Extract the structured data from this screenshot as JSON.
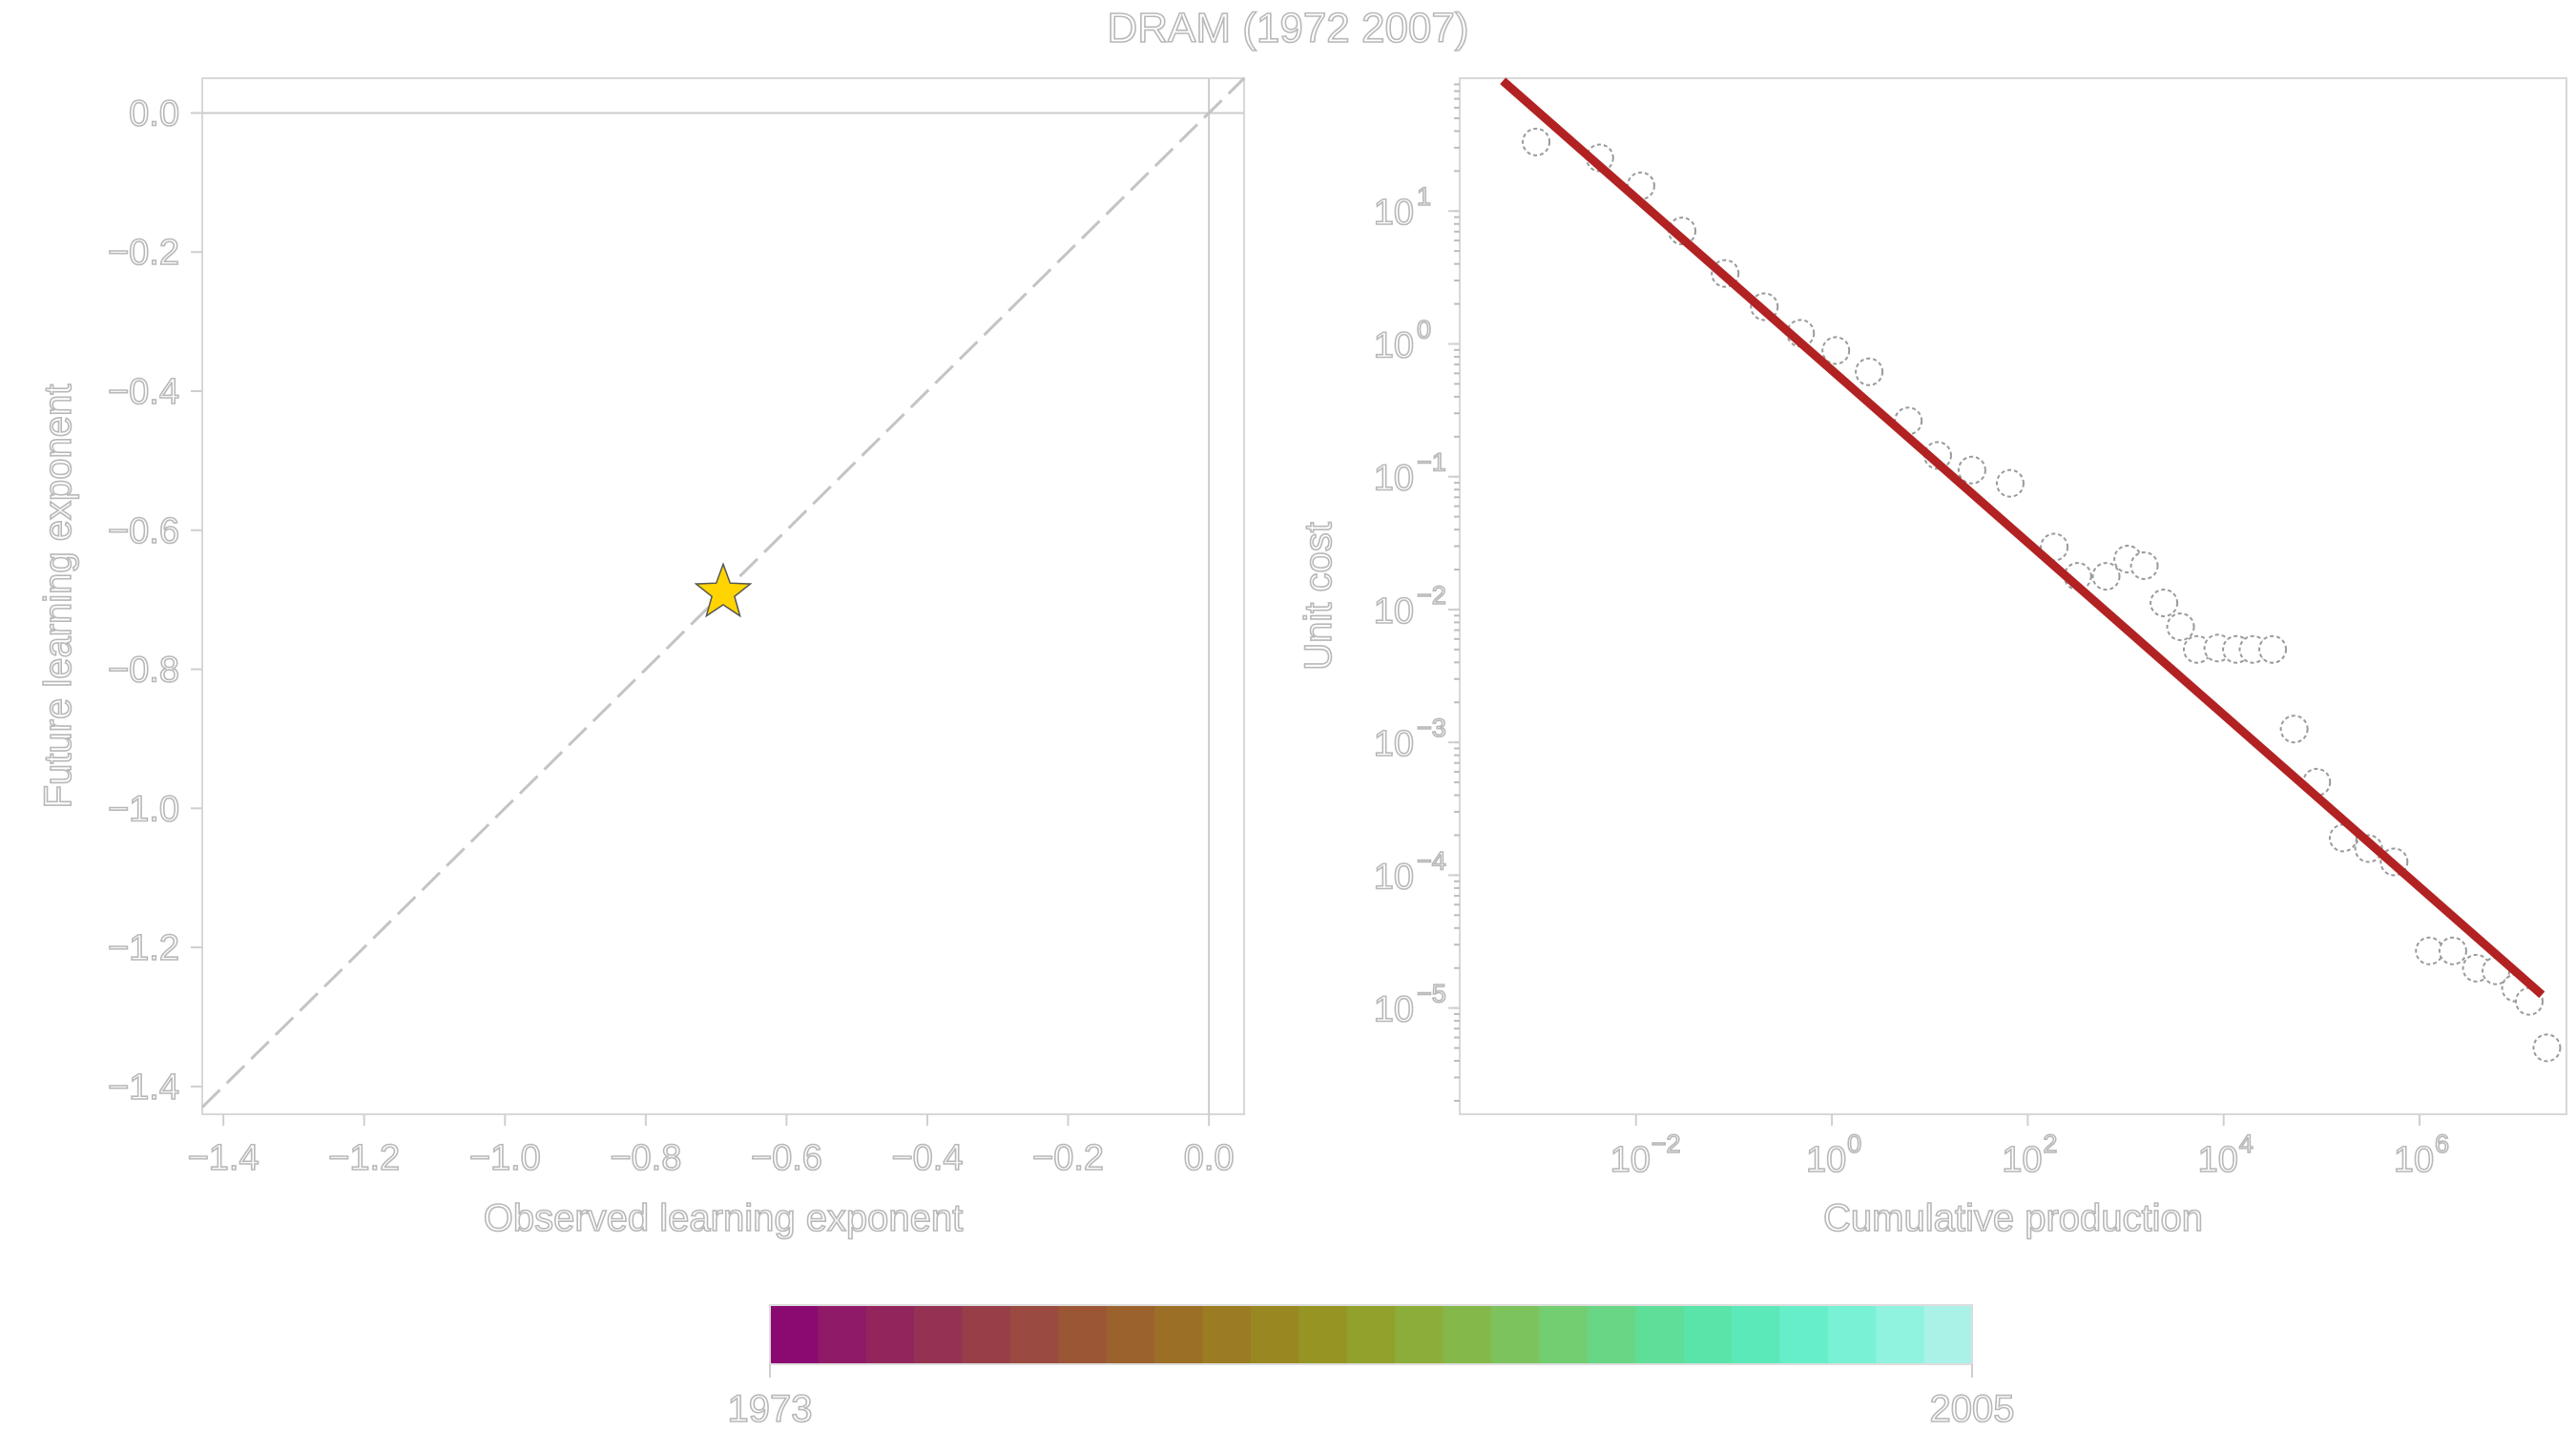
{
  "title": "DRAM (1972 2007)",
  "chart_data": [
    {
      "type": "scatter",
      "xlabel": "Observed learning exponent",
      "ylabel": "Future learning exponent",
      "xlim": [
        -1.43,
        0.05
      ],
      "ylim": [
        -1.44,
        0.05
      ],
      "x_ticks": [
        "−1.4",
        "−1.2",
        "−1.0",
        "−0.8",
        "−0.6",
        "−0.4",
        "−0.2",
        "0.0"
      ],
      "y_ticks": [
        "0.0",
        "−0.2",
        "−0.4",
        "−0.6",
        "−0.8",
        "−1.0",
        "−1.2",
        "−1.4"
      ],
      "x_tick_values": [
        -1.4,
        -1.2,
        -1.0,
        -0.8,
        -0.6,
        -0.4,
        -0.2,
        0.0
      ],
      "y_tick_values": [
        0.0,
        -0.2,
        -0.4,
        -0.6,
        -0.8,
        -1.0,
        -1.2,
        -1.4
      ],
      "reference_lines": [
        "x = 0",
        "y = 0",
        "y = x (dashed)"
      ],
      "points": [
        {
          "x": -0.69,
          "y": -0.69,
          "marker": "star",
          "color": "#ffd400"
        }
      ]
    },
    {
      "type": "scatter",
      "xlabel": "Cumulative production",
      "ylabel": "Unit cost",
      "log_x": true,
      "log_y": true,
      "xlim_log10": [
        -3.8,
        7.5
      ],
      "ylim_log10": [
        -5.8,
        2.0
      ],
      "x_ticks": [
        {
          "base": "10",
          "exp": "−2",
          "value_log10": -2
        },
        {
          "base": "10",
          "exp": "0",
          "value_log10": 0
        },
        {
          "base": "10",
          "exp": "2",
          "value_log10": 2
        },
        {
          "base": "10",
          "exp": "4",
          "value_log10": 4
        },
        {
          "base": "10",
          "exp": "6",
          "value_log10": 6
        }
      ],
      "y_ticks": [
        {
          "base": "10",
          "exp": "1",
          "value_log10": 1
        },
        {
          "base": "10",
          "exp": "0",
          "value_log10": 0
        },
        {
          "base": "10",
          "exp": "−1",
          "value_log10": -1
        },
        {
          "base": "10",
          "exp": "−2",
          "value_log10": -2
        },
        {
          "base": "10",
          "exp": "−3",
          "value_log10": -3
        },
        {
          "base": "10",
          "exp": "−4",
          "value_log10": -4
        },
        {
          "base": "10",
          "exp": "−5",
          "value_log10": -5
        }
      ],
      "fit_line": {
        "color": "#b22222",
        "x_log10": [
          -3.36,
          7.25
        ],
        "y_log10": [
          1.98,
          -4.9
        ]
      },
      "points_log10": [
        [
          -3.02,
          1.52
        ],
        [
          -2.37,
          1.4
        ],
        [
          -1.95,
          1.19
        ],
        [
          -1.53,
          0.85
        ],
        [
          -1.09,
          0.53
        ],
        [
          -0.69,
          0.28
        ],
        [
          -0.32,
          0.08
        ],
        [
          0.04,
          -0.05
        ],
        [
          0.38,
          -0.21
        ],
        [
          0.78,
          -0.58
        ],
        [
          1.08,
          -0.84
        ],
        [
          1.43,
          -0.95
        ],
        [
          1.82,
          -1.05
        ],
        [
          2.27,
          -1.53
        ],
        [
          2.51,
          -1.75
        ],
        [
          2.8,
          -1.75
        ],
        [
          3.02,
          -1.62
        ],
        [
          3.19,
          -1.67
        ],
        [
          3.39,
          -1.95
        ],
        [
          3.56,
          -2.13
        ],
        [
          3.73,
          -2.3
        ],
        [
          3.94,
          -2.29
        ],
        [
          4.13,
          -2.3
        ],
        [
          4.3,
          -2.3
        ],
        [
          4.5,
          -2.3
        ],
        [
          4.72,
          -2.9
        ],
        [
          4.95,
          -3.3
        ],
        [
          5.22,
          -3.72
        ],
        [
          5.48,
          -3.8
        ],
        [
          5.74,
          -3.9
        ],
        [
          6.1,
          -4.57
        ],
        [
          6.34,
          -4.57
        ],
        [
          6.58,
          -4.7
        ],
        [
          6.78,
          -4.72
        ],
        [
          6.98,
          -4.85
        ],
        [
          7.12,
          -4.95
        ],
        [
          7.3,
          -5.3
        ]
      ]
    }
  ],
  "colorbar": {
    "start_label": "1973",
    "end_label": "2005",
    "colors": [
      "#8b0a72",
      "#8f1a67",
      "#93255d",
      "#953253",
      "#983e49",
      "#9a4a40",
      "#9b5636",
      "#9c622e",
      "#9c6f27",
      "#9b7c23",
      "#998822",
      "#969524",
      "#92a12c",
      "#8cad39",
      "#85b84a",
      "#7dc35d",
      "#73cd71",
      "#69d685",
      "#5fde98",
      "#5ae4aa",
      "#5ce9ba",
      "#66eec8",
      "#78f1d4",
      "#90f3df",
      "#aaf2e8"
    ]
  }
}
